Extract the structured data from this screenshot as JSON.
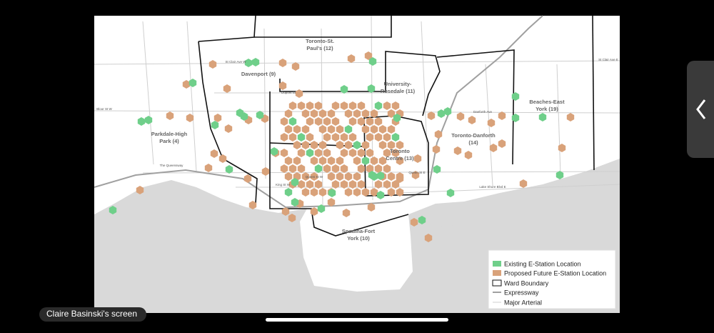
{
  "wards": [
    {
      "lines": [
        "Toronto-St.",
        "Paul's (12)"
      ]
    },
    {
      "lines": [
        "Davenport (9)"
      ]
    },
    {
      "lines": [
        "University-",
        "Rosedale (11)"
      ]
    },
    {
      "lines": [
        "Parkdale-High",
        "Park (4)"
      ]
    },
    {
      "lines": [
        "Toronto",
        "Centre (13)"
      ]
    },
    {
      "lines": [
        "Toronto-Danforth",
        "(14)"
      ]
    },
    {
      "lines": [
        "Beaches-East",
        "York (19)"
      ]
    },
    {
      "lines": [
        "Spadina-Fort",
        "York (10)"
      ]
    }
  ],
  "streets": [
    "St Clair Ave W",
    "Bloor St W",
    "Dupont St",
    "Queen St W",
    "King St W",
    "Queen St E",
    "Danforth Ave",
    "Lake Shore Blvd E",
    "The Queensway",
    "St Clair Ave E"
  ],
  "legend": [
    "Existing E-Station Location",
    "Proposed Future E-Station Location",
    "Ward Boundary",
    "Expressway",
    "Major Arterial"
  ],
  "screen_label": "Claire Basinski's screen"
}
